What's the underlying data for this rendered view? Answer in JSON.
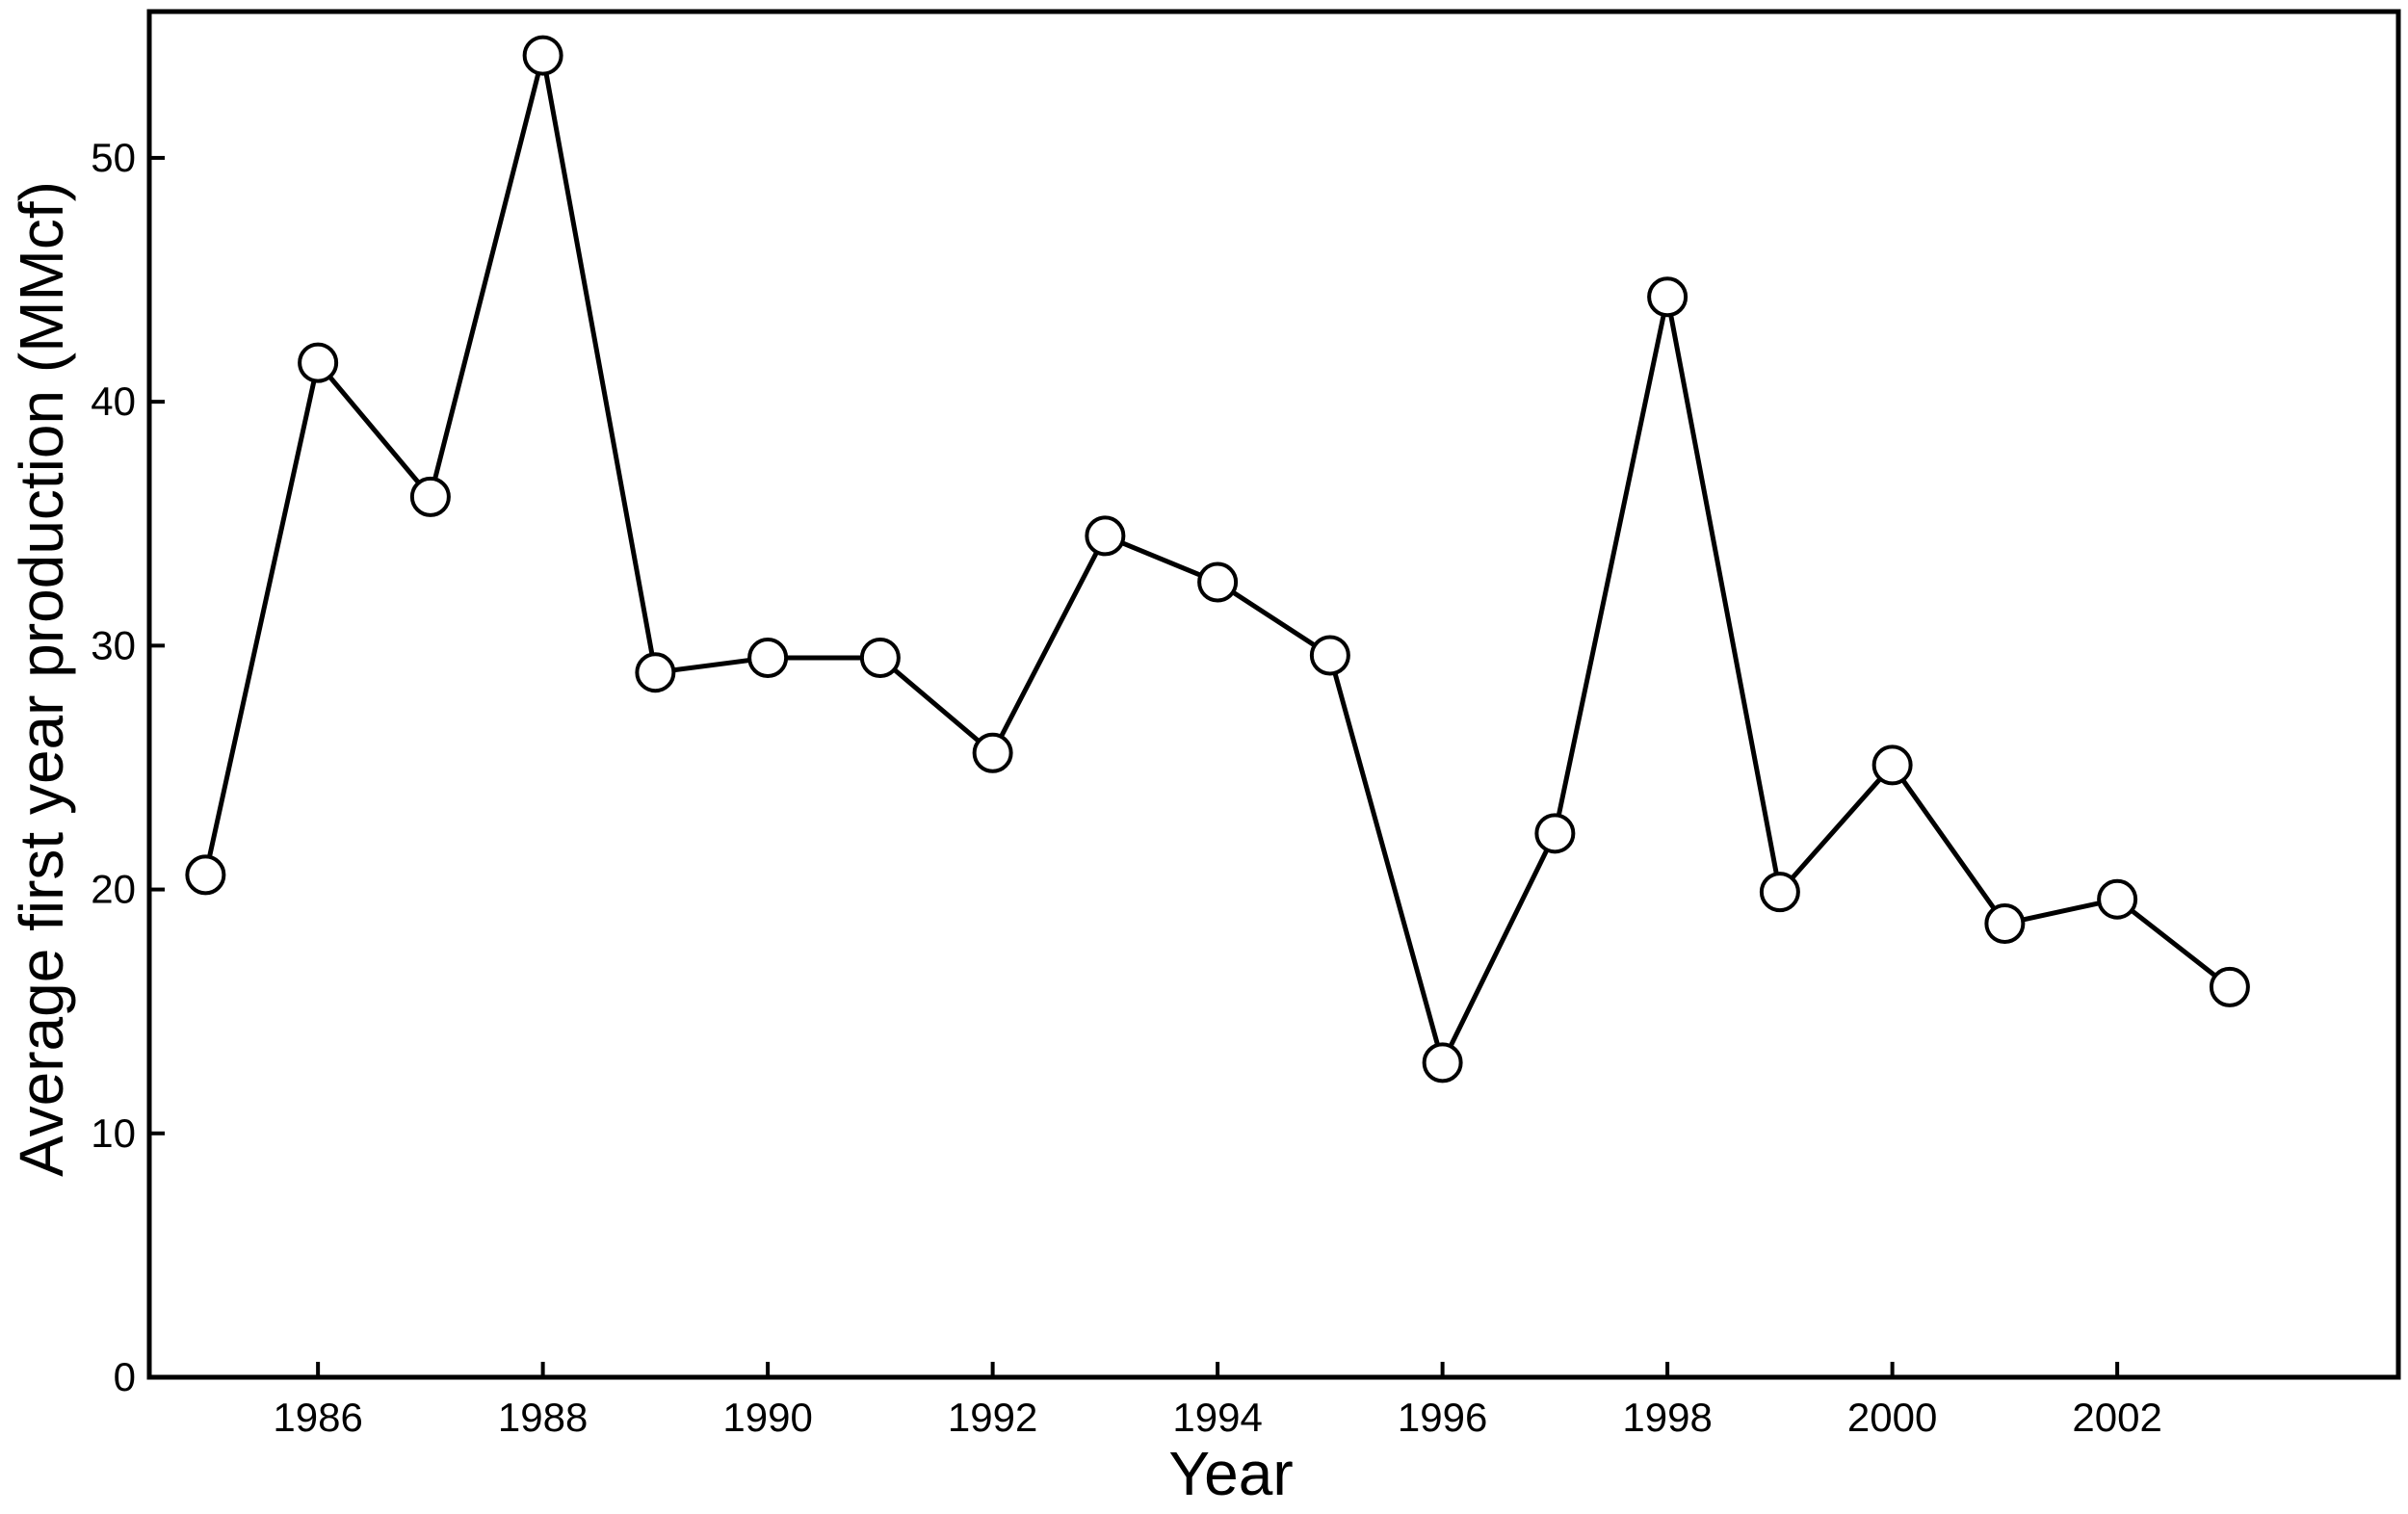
{
  "chart_data": {
    "type": "line",
    "title": "",
    "xlabel": "Year",
    "ylabel": "Average first year production (MMcf)",
    "x": [
      1985,
      1986,
      1987,
      1988,
      1989,
      1990,
      1991,
      1992,
      1993,
      1994,
      1995,
      1996,
      1997,
      1998,
      1999,
      2000,
      2001,
      2002,
      2003
    ],
    "series": [
      {
        "values": [
          20.6,
          41.6,
          36.1,
          54.2,
          28.9,
          29.5,
          29.5,
          25.6,
          34.5,
          32.6,
          29.6,
          12.9,
          22.3,
          44.3,
          19.9,
          25.1,
          18.6,
          19.6,
          16.0
        ],
        "marker": "open-circle",
        "color": "#000000"
      }
    ],
    "xlim": [
      1984.5,
      2004.5
    ],
    "ylim": [
      0,
      56
    ],
    "xticks": [
      1986,
      1988,
      1990,
      1992,
      1994,
      1996,
      1998,
      2000,
      2002
    ],
    "xtick_labels": [
      "1986",
      "1988",
      "1990",
      "1992",
      "1994",
      "1996",
      "1998",
      "2000",
      "2002"
    ],
    "yticks": [
      0,
      10,
      20,
      30,
      40,
      50
    ],
    "ytick_labels": [
      "0",
      "10",
      "20",
      "30",
      "40",
      "50"
    ],
    "grid": false,
    "legend": "none"
  }
}
